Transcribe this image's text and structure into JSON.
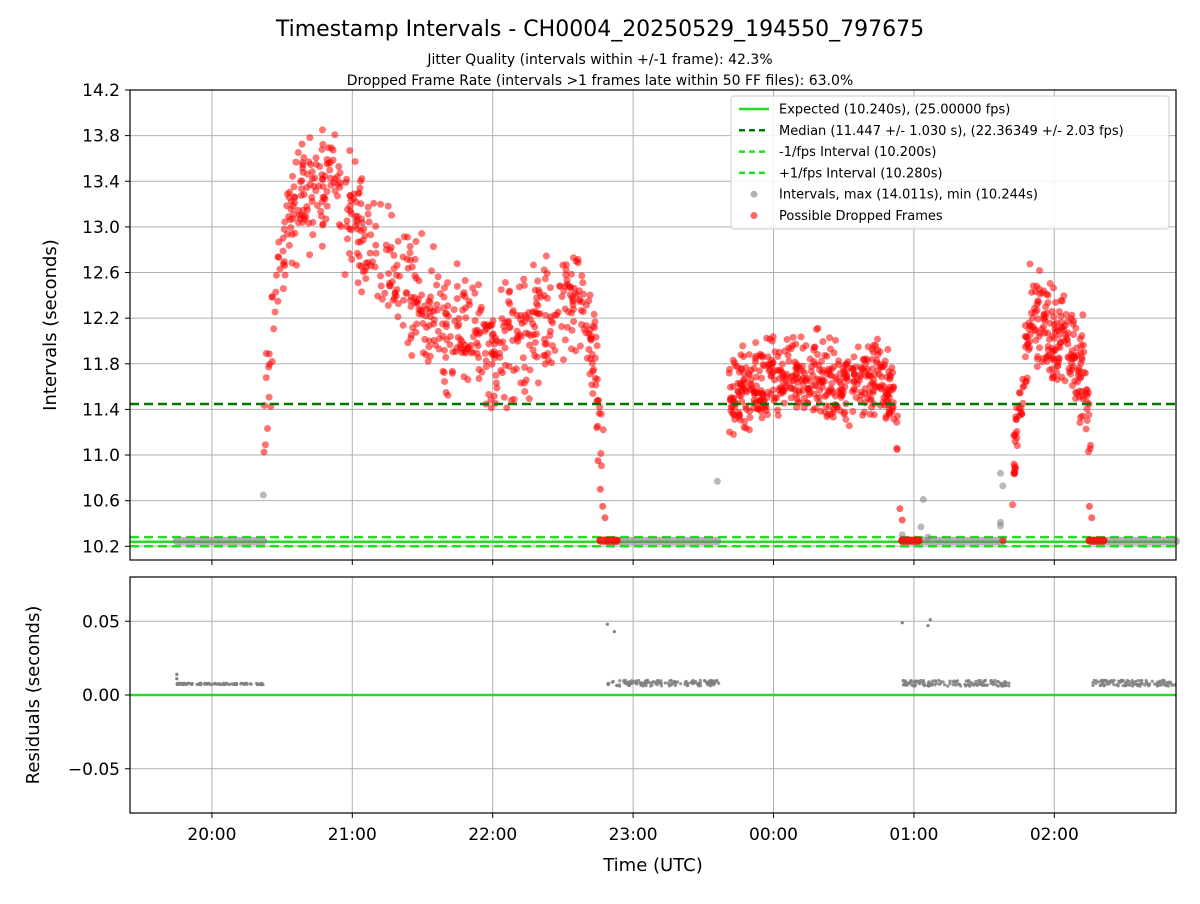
{
  "title": "Timestamp Intervals - CH0004_20250529_194550_797675",
  "subtitles": [
    "Jitter Quality (intervals within +/-1 frame): 42.3%",
    "Dropped Frame Rate (intervals >1 frames late within 50 FF files): 63.0%"
  ],
  "colors": {
    "expected": "#22dd22",
    "median": "#007700",
    "intervals": "#808080",
    "dropped": "#ff0000",
    "grid": "#b0b0b0"
  },
  "chart_data": [
    {
      "type": "scatter",
      "name": "intervals-panel",
      "ylabel": "Intervals (seconds)",
      "ylim": [
        10.08,
        14.2
      ],
      "yticks": [
        "10.2",
        "10.6",
        "11.0",
        "11.4",
        "11.8",
        "12.2",
        "12.6",
        "13.0",
        "13.4",
        "13.8",
        "14.2"
      ],
      "x_range_hours": [
        "19:25",
        "02:52"
      ],
      "grid": true,
      "legend_position": "top-right",
      "legend": [
        "Expected (10.240s), (25.00000 fps)",
        "Median (11.447 +/- 1.030 s), (22.36349 +/- 2.03 fps)",
        "-1/fps Interval (10.200s)",
        "+1/fps Interval (10.280s)",
        "Intervals, max (14.011s), min (10.244s)",
        "Possible Dropped Frames"
      ],
      "reference_lines": {
        "expected": 10.24,
        "median": 11.447,
        "minus_1_fps": 10.2,
        "plus_1_fps": 10.28
      },
      "normal_interval_segments": [
        {
          "start": "19:45",
          "end": "20:22",
          "value": 10.245
        },
        {
          "start": "22:49",
          "end": "23:36",
          "value": 10.245
        },
        {
          "start": "00:55",
          "end": "01:38",
          "value": 10.245
        },
        {
          "start": "02:16",
          "end": "02:52",
          "value": 10.245
        }
      ],
      "gray_outliers": [
        {
          "time": "20:22",
          "value": 10.65
        },
        {
          "time": "23:36",
          "value": 10.77
        },
        {
          "time": "00:55",
          "value": 10.3
        },
        {
          "time": "01:03",
          "value": 10.37
        },
        {
          "time": "01:04",
          "value": 10.61
        },
        {
          "time": "01:06",
          "value": 10.28
        },
        {
          "time": "01:37",
          "value": 10.84
        },
        {
          "time": "01:37",
          "value": 10.41
        },
        {
          "time": "01:37",
          "value": 10.38
        },
        {
          "time": "01:38",
          "value": 10.73
        }
      ],
      "dropped_clusters": [
        {
          "start": "20:22",
          "end": "22:48",
          "profile": [
            [
              "20:22",
              11.2
            ],
            [
              "20:28",
              12.6
            ],
            [
              "20:35",
              13.2
            ],
            [
              "20:50",
              13.4
            ],
            [
              "21:05",
              12.9
            ],
            [
              "21:30",
              12.3
            ],
            [
              "22:00",
              11.9
            ],
            [
              "22:25",
              12.2
            ],
            [
              "22:35",
              12.5
            ],
            [
              "22:42",
              12.0
            ],
            [
              "22:46",
              11.3
            ],
            [
              "22:48",
              10.6
            ]
          ],
          "spread": 0.35
        },
        {
          "start": "23:41",
          "end": "00:53",
          "profile": [
            [
              "23:41",
              11.5
            ],
            [
              "23:50",
              11.6
            ],
            [
              "00:10",
              11.7
            ],
            [
              "00:30",
              11.6
            ],
            [
              "00:45",
              11.7
            ],
            [
              "00:51",
              11.5
            ],
            [
              "00:53",
              11.2
            ]
          ],
          "spread": 0.25
        },
        {
          "start": "01:42",
          "end": "02:16",
          "profile": [
            [
              "01:42",
              10.8
            ],
            [
              "01:46",
              11.5
            ],
            [
              "01:50",
              12.3
            ],
            [
              "01:57",
              12.0
            ],
            [
              "02:05",
              12.0
            ],
            [
              "02:12",
              11.8
            ],
            [
              "02:16",
              11.0
            ]
          ],
          "spread": 0.3
        },
        {
          "start": "22:46",
          "end": "22:53",
          "profile": [
            [
              "22:46",
              10.25
            ],
            [
              "22:53",
              10.25
            ]
          ],
          "spread": 0.0
        },
        {
          "start": "00:55",
          "end": "01:02",
          "profile": [
            [
              "00:55",
              10.25
            ],
            [
              "01:02",
              10.25
            ]
          ],
          "spread": 0.0
        },
        {
          "start": "02:15",
          "end": "02:21",
          "profile": [
            [
              "02:15",
              10.25
            ],
            [
              "02:21",
              10.25
            ]
          ],
          "spread": 0.0
        }
      ],
      "point_counts": {
        "cluster_a": 640,
        "cluster_b": 470,
        "cluster_c": 230
      },
      "transition_points": [
        {
          "time": "22:45",
          "value": 10.95
        },
        {
          "time": "22:46",
          "value": 10.7
        },
        {
          "time": "22:47",
          "value": 10.55
        },
        {
          "time": "22:48",
          "value": 10.45
        },
        {
          "time": "00:54",
          "value": 10.53
        },
        {
          "time": "00:55",
          "value": 10.43
        },
        {
          "time": "02:15",
          "value": 10.55
        },
        {
          "time": "02:16",
          "value": 10.45
        },
        {
          "time": "01:38",
          "value": 10.25
        }
      ]
    },
    {
      "type": "scatter",
      "name": "residuals-panel",
      "xlabel": "Time (UTC)",
      "ylabel": "Residuals (seconds)",
      "ylim": [
        -0.08,
        0.08
      ],
      "yticks": [
        "0.05",
        "0.00",
        "−0.05"
      ],
      "xticks": [
        "20:00",
        "21:00",
        "22:00",
        "23:00",
        "00:00",
        "01:00",
        "02:00"
      ],
      "grid": true,
      "zero_line": 0.0,
      "residual_segments": [
        {
          "start": "19:45",
          "end": "20:22",
          "value": 0.0075,
          "spread": 0.001
        },
        {
          "start": "22:49",
          "end": "23:37",
          "value": 0.008,
          "spread": 0.004
        },
        {
          "start": "00:55",
          "end": "01:41",
          "value": 0.008,
          "spread": 0.004
        },
        {
          "start": "02:16",
          "end": "02:52",
          "value": 0.008,
          "spread": 0.004
        }
      ],
      "residual_outliers": [
        {
          "time": "19:45",
          "value": 0.014
        },
        {
          "time": "19:45",
          "value": 0.011
        },
        {
          "time": "22:49",
          "value": 0.048
        },
        {
          "time": "22:52",
          "value": 0.043
        },
        {
          "time": "00:55",
          "value": 0.049
        },
        {
          "time": "01:06",
          "value": 0.047
        },
        {
          "time": "01:07",
          "value": 0.051
        }
      ]
    }
  ]
}
